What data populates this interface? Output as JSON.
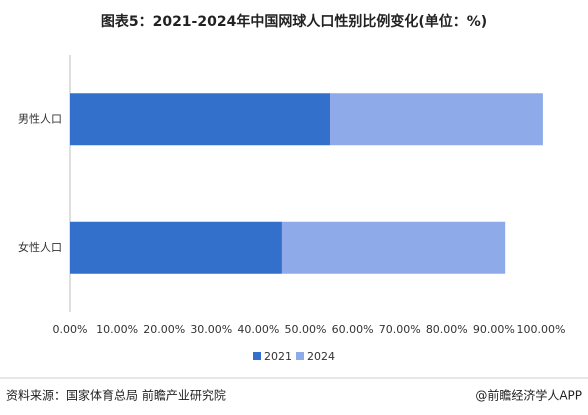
{
  "chart_data": {
    "type": "stacked-barh",
    "title": "图表5：2021-2024年中国网球人口性别比例变化(单位：%)",
    "categories": [
      "男性人口",
      "女性人口"
    ],
    "series": [
      {
        "name": "2021",
        "color": "#3370cc",
        "values": [
          55.2,
          45.0
        ]
      },
      {
        "name": "2024",
        "color": "#8eaae8",
        "values": [
          45.2,
          47.4
        ]
      }
    ],
    "xlim": [
      0,
      100
    ],
    "xticks": [
      {
        "value": 0,
        "label": "0.00%"
      },
      {
        "value": 10,
        "label": "10.00%"
      },
      {
        "value": 20,
        "label": "20.00%"
      },
      {
        "value": 30,
        "label": "30.00%"
      },
      {
        "value": 40,
        "label": "40.00%"
      },
      {
        "value": 50,
        "label": "50.00%"
      },
      {
        "value": 60,
        "label": "60.00%"
      },
      {
        "value": 70,
        "label": "70.00%"
      },
      {
        "value": 80,
        "label": "80.00%"
      },
      {
        "value": 90,
        "label": "90.00%"
      },
      {
        "value": 100,
        "label": "100.00%"
      }
    ],
    "grid": false,
    "legend": "bottom"
  },
  "footer": {
    "source": "资料来源：国家体育总局 前瞻产业研究院",
    "credit": "@前瞻经济学人APP"
  }
}
